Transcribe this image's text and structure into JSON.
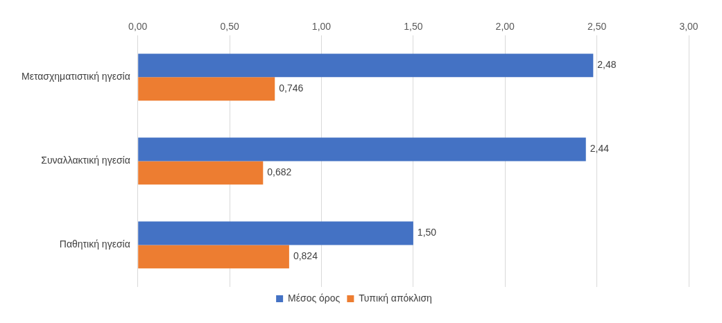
{
  "chart_data": {
    "type": "bar",
    "orientation": "horizontal",
    "categories": [
      "Μετασχηματιστική ηγεσία",
      "Συναλλακτική ηγεσία",
      "Παθητική ηγεσία"
    ],
    "series": [
      {
        "name": "Μέσος όρος",
        "color": "#4472c4",
        "values": [
          2.48,
          2.44,
          1.5
        ],
        "value_labels": [
          "2,48",
          "2,44",
          "1,50"
        ]
      },
      {
        "name": "Τυπική απόκλιση",
        "color": "#ed7d31",
        "values": [
          0.746,
          0.682,
          0.824
        ],
        "value_labels": [
          "0,746",
          "0,682",
          "0,824"
        ]
      }
    ],
    "xlim": [
      0,
      3
    ],
    "xticks": [
      {
        "value": 0,
        "label": "0,00"
      },
      {
        "value": 0.5,
        "label": "0,50"
      },
      {
        "value": 1,
        "label": "1,00"
      },
      {
        "value": 1.5,
        "label": "1,50"
      },
      {
        "value": 2,
        "label": "2,00"
      },
      {
        "value": 2.5,
        "label": "2,50"
      },
      {
        "value": 3,
        "label": "3,00"
      }
    ],
    "grid": "x",
    "legend": "bottom"
  }
}
